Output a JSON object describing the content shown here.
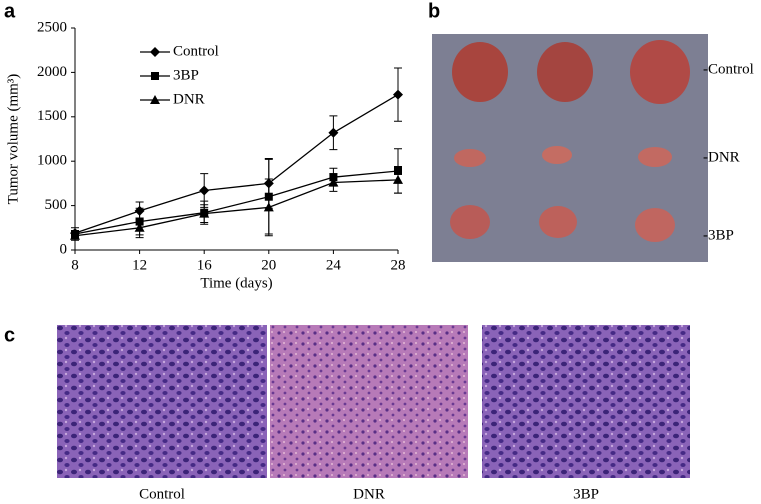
{
  "chart_data": {
    "type": "line",
    "x": [
      8,
      12,
      16,
      20,
      24,
      28
    ],
    "xlim": [
      8,
      28
    ],
    "xticks": [
      8,
      12,
      16,
      20,
      24,
      28
    ],
    "ylim": [
      0,
      2500
    ],
    "yticks": [
      0,
      500,
      1000,
      1500,
      2000,
      2500
    ],
    "xlabel": "Time (days)",
    "ylabel": "Tumor volume (mm³)",
    "legend": "upper left",
    "grid": false,
    "series": [
      {
        "name": "Control",
        "color": "#000",
        "marker": "diamond",
        "values": [
          190,
          440,
          670,
          750,
          1320,
          1750
        ],
        "errors": [
          60,
          100,
          190,
          280,
          190,
          300
        ]
      },
      {
        "name": "3BP",
        "color": "#000",
        "marker": "square",
        "values": [
          180,
          320,
          420,
          600,
          820,
          890
        ],
        "errors": [
          40,
          150,
          130,
          420,
          100,
          250
        ]
      },
      {
        "name": "DNR",
        "color": "#000",
        "marker": "triangle",
        "values": [
          160,
          250,
          410,
          480,
          760,
          790
        ],
        "errors": [
          50,
          110,
          100,
          320,
          100,
          150
        ]
      }
    ]
  },
  "panel_labels": [
    "a",
    "b",
    "c"
  ],
  "photo_labels": [
    "-Control",
    "-DNR",
    "-3BP"
  ],
  "histology_labels": [
    "Control",
    "DNR",
    "3BP"
  ]
}
